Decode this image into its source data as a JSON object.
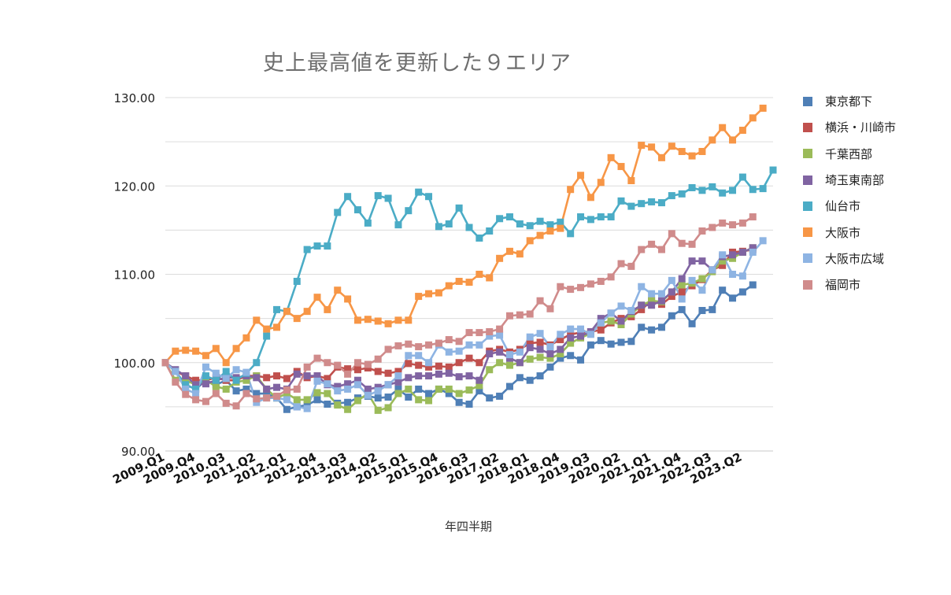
{
  "chart_data": {
    "type": "line",
    "title": "史上最高値を更新した９エリア",
    "xlabel": "年四半期",
    "ylabel": "",
    "ylim": [
      90,
      130
    ],
    "yticks": [
      "90.00",
      "100.00",
      "110.00",
      "120.00",
      "130.00"
    ],
    "ytick_values": [
      90,
      100,
      110,
      120,
      130
    ],
    "xtick_labels": [
      "2009.Q1",
      "2009.Q4",
      "2010.Q3",
      "2011.Q2",
      "2012.Q1",
      "2012.Q4",
      "2013.Q3",
      "2014.Q2",
      "2015.Q1",
      "2015.Q4",
      "2016.Q3",
      "2017.Q2",
      "2018.Q1",
      "2018.Q4",
      "2019.Q3",
      "2020.Q2",
      "2021.Q1",
      "2021.Q4",
      "2022.Q3",
      "2023.Q2"
    ],
    "xtick_indices": [
      0,
      3,
      6,
      9,
      12,
      15,
      18,
      21,
      24,
      27,
      30,
      33,
      36,
      39,
      42,
      45,
      48,
      51,
      54,
      57
    ],
    "grid": true,
    "legend_position": "right",
    "series": [
      {
        "name": "東京都下",
        "color": "#4f7fb6",
        "values": [
          100,
          99,
          97.5,
          97,
          98,
          97.5,
          98,
          96.8,
          97,
          96.5,
          96.5,
          96,
          94.7,
          95,
          95.2,
          95.8,
          95.3,
          95.4,
          95.5,
          96,
          96.2,
          96,
          96.1,
          97,
          96.1,
          97,
          96.5,
          97,
          96.5,
          95.5,
          95.3,
          96.8,
          96,
          96.2,
          97.3,
          98.3,
          98,
          98.5,
          99.5,
          100.5,
          100.8,
          100.3,
          102,
          102.5,
          102.1,
          102.3,
          102.4,
          104,
          103.7,
          104,
          105.3,
          106,
          104.4,
          105.9,
          106,
          108.2,
          107.3,
          108,
          108.8
        ]
      },
      {
        "name": "横浜・川崎市",
        "color": "#c0504d",
        "values": [
          100,
          99,
          98.5,
          98,
          98,
          98.3,
          98,
          98,
          98.5,
          98.5,
          98.3,
          98.5,
          98.2,
          99,
          98.3,
          98.5,
          98.2,
          99.5,
          99.3,
          99.2,
          99.4,
          99,
          98.8,
          99,
          99.9,
          99.7,
          99.5,
          99.6,
          99.5,
          100,
          100.5,
          100,
          101.3,
          101.5,
          101.2,
          101.5,
          102.2,
          102.3,
          102,
          102.6,
          103.2,
          103.4,
          103.5,
          103.7,
          104.5,
          105,
          105.2,
          106,
          107,
          106.6,
          107.5,
          108,
          108.7,
          109.4,
          110.5,
          111,
          112.5,
          112.6,
          112.8
        ]
      },
      {
        "name": "千葉西部",
        "color": "#9bbb59",
        "values": [
          100,
          98,
          98,
          97.5,
          98,
          97.3,
          97,
          97.8,
          98,
          98.5,
          97,
          96,
          96.5,
          95.8,
          95.8,
          96.6,
          96.5,
          95.2,
          94.7,
          95.7,
          96.5,
          94.6,
          94.9,
          96.5,
          97,
          95.8,
          95.7,
          97,
          97,
          96.5,
          96.9,
          97.4,
          99.2,
          100,
          99.7,
          100,
          100.4,
          100.6,
          100.5,
          101,
          102.2,
          102.8,
          103.3,
          104.5,
          104.7,
          104.3,
          105.5,
          106.5,
          107,
          106.9,
          108,
          108.8,
          109,
          109.5,
          110.3,
          111.5,
          111.8,
          112.5,
          113
        ]
      },
      {
        "name": "埼玉東南部",
        "color": "#8064a2",
        "values": [
          100,
          99.2,
          98.5,
          97.5,
          97.6,
          98,
          98.3,
          98.3,
          98.5,
          98.3,
          97,
          97.2,
          97,
          98.7,
          98.5,
          98.5,
          97.5,
          97.3,
          97.6,
          98,
          97,
          97.2,
          97.5,
          97.8,
          98.3,
          98.5,
          98.5,
          98.7,
          98.8,
          98.4,
          98.5,
          98,
          101,
          101.2,
          100.5,
          100,
          101.7,
          101.5,
          101,
          101.5,
          102.8,
          103,
          103.5,
          105,
          105.6,
          104.7,
          105.8,
          106.5,
          106.5,
          107,
          108,
          109.5,
          111.5,
          111.5,
          110.5,
          112,
          112.2,
          112.5,
          113
        ]
      },
      {
        "name": "仙台市",
        "color": "#4bacc6",
        "values": [
          100,
          99,
          97.5,
          97,
          98.5,
          98,
          99,
          98,
          98.8,
          100,
          103,
          106,
          105.8,
          109.2,
          112.8,
          113.2,
          113.2,
          117,
          118.8,
          117.3,
          115.8,
          118.9,
          118.6,
          115.6,
          117.2,
          119.3,
          118.8,
          115.4,
          115.7,
          117.5,
          115.3,
          114.1,
          114.9,
          116.3,
          116.5,
          115.7,
          115.5,
          116,
          115.6,
          115.9,
          114.6,
          116.5,
          116.2,
          116.5,
          116.5,
          118.3,
          117.7,
          118,
          118.2,
          118.1,
          118.9,
          119.1,
          119.8,
          119.5,
          119.9,
          119.2,
          119.5,
          121,
          119.6,
          119.7,
          121.8
        ]
      },
      {
        "name": "大阪市",
        "color": "#f79646",
        "values": [
          100,
          101.3,
          101.4,
          101.3,
          100.8,
          101.6,
          100,
          101.6,
          102.8,
          104.8,
          103.8,
          104,
          105.8,
          105,
          105.8,
          107.4,
          106,
          108.2,
          107.2,
          104.8,
          104.9,
          104.7,
          104.4,
          104.8,
          104.8,
          107.5,
          107.8,
          107.9,
          108.7,
          109.2,
          109.1,
          110,
          109.6,
          111.8,
          112.6,
          112.3,
          113.8,
          114.4,
          114.9,
          115.2,
          119.6,
          121.2,
          118.7,
          120.4,
          123.2,
          122.2,
          120.6,
          124.6,
          124.4,
          123.2,
          124.5,
          123.9,
          123.4,
          123.9,
          125.2,
          126.6,
          125.2,
          126.3,
          127.7,
          128.8
        ]
      },
      {
        "name": "大阪市広域",
        "color": "#8eb4e3",
        "values": [
          100,
          99,
          97,
          96.5,
          99.5,
          98.8,
          98.2,
          99.2,
          98.9,
          95.5,
          96,
          96,
          95.8,
          95,
          94.8,
          97.9,
          97.6,
          96.8,
          97,
          97.5,
          96.3,
          96.8,
          97.5,
          98.5,
          100.8,
          100.8,
          100,
          102,
          101.2,
          101.3,
          102,
          102,
          103,
          103.1,
          100.9,
          101.2,
          102.9,
          103.3,
          101.8,
          103.2,
          103.8,
          103.8,
          103.2,
          104.5,
          105.6,
          106.4,
          105.9,
          108.6,
          107.8,
          107.8,
          109.3,
          107.2,
          109.3,
          108.2,
          110.5,
          112.2,
          110,
          109.8,
          112.5,
          113.8
        ]
      },
      {
        "name": "福岡市",
        "color": "#d08b8b",
        "values": [
          100,
          97.8,
          96.4,
          95.8,
          95.6,
          96.5,
          95.4,
          95.1,
          96.5,
          95.9,
          96,
          96.2,
          96.9,
          97,
          99.5,
          100.5,
          100,
          99.7,
          98.7,
          100,
          99.8,
          100.4,
          101.5,
          101.9,
          102.1,
          101.8,
          102,
          102.2,
          102.6,
          102.4,
          103.4,
          103.4,
          103.5,
          103.8,
          105.3,
          105.4,
          105.5,
          107,
          106.1,
          108.6,
          108.3,
          108.5,
          108.9,
          109.2,
          109.7,
          111.2,
          110.9,
          112.8,
          113.4,
          112.8,
          114.6,
          113.5,
          113.4,
          114.9,
          115.3,
          115.8,
          115.6,
          115.8,
          116.5
        ]
      }
    ]
  }
}
